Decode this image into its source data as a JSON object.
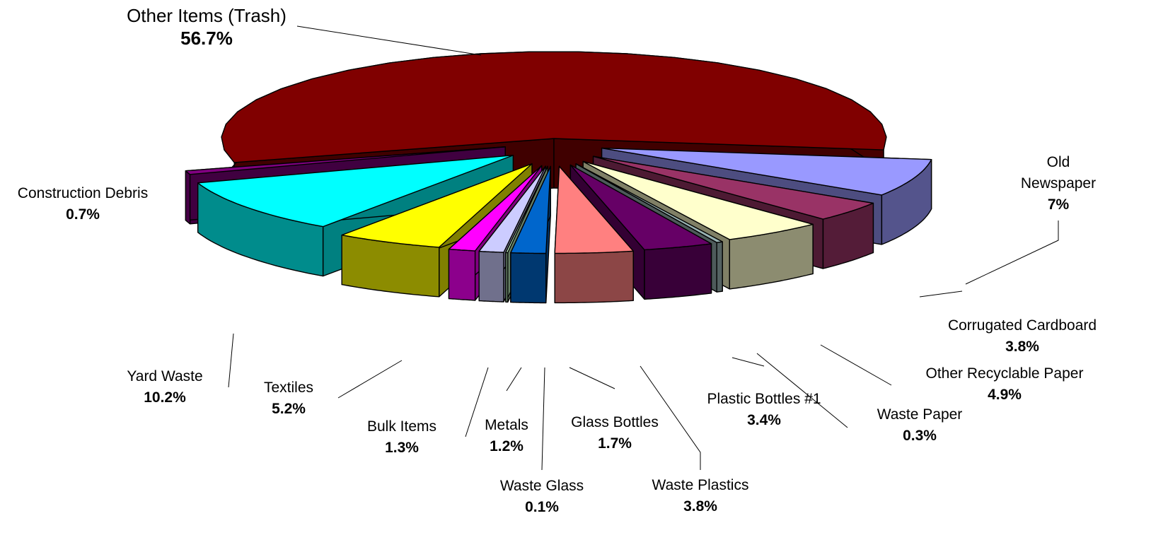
{
  "chart_data": {
    "type": "pie",
    "style": "3d-exploded",
    "slices": [
      {
        "label": "Other Items (Trash)",
        "value": 56.7,
        "pct_label": "56.7%",
        "color": "#800000"
      },
      {
        "label": "Old Newspaper",
        "label_lines": [
          "Old",
          "Newspaper"
        ],
        "value": 7,
        "pct_label": "7%",
        "color": "#9999ff"
      },
      {
        "label": "Corrugated Cardboard",
        "value": 3.8,
        "pct_label": "3.8%",
        "color": "#993366"
      },
      {
        "label": "Other Recyclable Paper",
        "value": 4.9,
        "pct_label": "4.9%",
        "color": "#ffffcc"
      },
      {
        "label": "Waste Paper",
        "value": 0.3,
        "pct_label": "0.3%",
        "color": "#99b3b3"
      },
      {
        "label": "Plastic Bottles #1",
        "value": 3.4,
        "pct_label": "3.4%",
        "color": "#660066"
      },
      {
        "label": "Waste Plastics",
        "value": 3.8,
        "pct_label": "3.8%",
        "color": "#ff8080"
      },
      {
        "label": "Glass Bottles",
        "value": 1.7,
        "pct_label": "1.7%",
        "color": "#0066cc"
      },
      {
        "label": "Waste Glass",
        "value": 0.1,
        "pct_label": "0.1%",
        "color": "#ccffcc"
      },
      {
        "label": "Metals",
        "value": 1.2,
        "pct_label": "1.2%",
        "color": "#ccccff"
      },
      {
        "label": "Bulk Items",
        "value": 1.3,
        "pct_label": "1.3%",
        "color": "#ff00ff"
      },
      {
        "label": "Textiles",
        "value": 5.2,
        "pct_label": "5.2%",
        "color": "#ffff00"
      },
      {
        "label": "Yard Waste",
        "value": 10.2,
        "pct_label": "10.2%",
        "color": "#00ffff"
      },
      {
        "label": "Construction Debris",
        "value": 0.7,
        "pct_label": "0.7%",
        "color": "#800080"
      }
    ],
    "legend": "none",
    "data_labels": "outside with leader lines"
  }
}
